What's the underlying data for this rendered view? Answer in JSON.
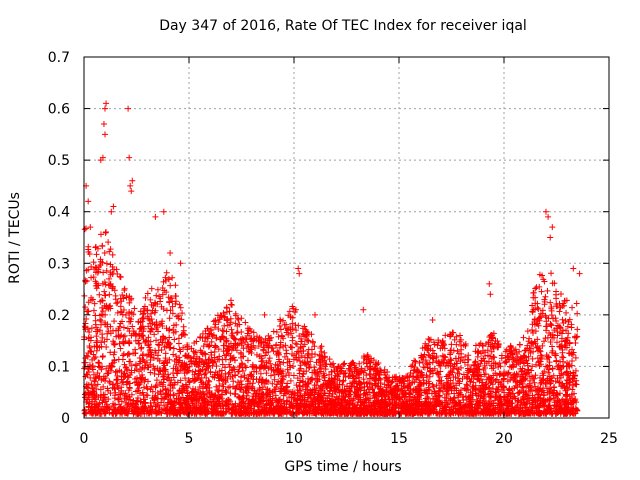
{
  "chart_data": {
    "type": "scatter",
    "title": "Day 347 of 2016, Rate Of TEC Index for receiver iqal",
    "xlabel": "GPS time / hours",
    "ylabel": "ROTI / TECUs",
    "xlim": [
      0,
      25
    ],
    "ylim": [
      0,
      0.7
    ],
    "x_ticks": [
      0,
      5,
      10,
      15,
      20,
      25
    ],
    "x_tick_labels": [
      "0",
      "5",
      "10",
      "15",
      "20",
      "25"
    ],
    "y_ticks": [
      0,
      0.1,
      0.2,
      0.3,
      0.4,
      0.5,
      0.6,
      0.7
    ],
    "y_tick_labels": [
      "0",
      "0.1",
      "0.2",
      "0.3",
      "0.4",
      "0.5",
      "0.6",
      "0.7"
    ],
    "grid": true,
    "marker": "+",
    "color": "#ff0000",
    "envelope": {
      "x": [
        0.0,
        0.5,
        1.0,
        1.5,
        2.0,
        2.5,
        3.0,
        3.5,
        4.0,
        4.5,
        5.0,
        5.5,
        6.0,
        6.5,
        7.0,
        7.5,
        8.0,
        8.5,
        9.0,
        9.5,
        10.0,
        10.5,
        11.0,
        11.5,
        12.0,
        12.5,
        13.0,
        13.5,
        14.0,
        14.5,
        15.0,
        15.5,
        16.0,
        16.5,
        17.0,
        17.5,
        18.0,
        18.5,
        19.0,
        19.5,
        20.0,
        20.5,
        21.0,
        21.5,
        22.0,
        22.5,
        23.0,
        23.5
      ],
      "y_upper": [
        0.38,
        0.33,
        0.36,
        0.3,
        0.26,
        0.2,
        0.24,
        0.25,
        0.28,
        0.24,
        0.12,
        0.16,
        0.17,
        0.2,
        0.22,
        0.2,
        0.16,
        0.15,
        0.17,
        0.19,
        0.22,
        0.17,
        0.15,
        0.12,
        0.09,
        0.1,
        0.1,
        0.12,
        0.1,
        0.08,
        0.07,
        0.09,
        0.12,
        0.16,
        0.14,
        0.17,
        0.15,
        0.13,
        0.14,
        0.16,
        0.12,
        0.14,
        0.15,
        0.26,
        0.3,
        0.25,
        0.22,
        0.22
      ]
    },
    "highlight_points": [
      {
        "x": 0.1,
        "y": 0.45
      },
      {
        "x": 0.2,
        "y": 0.42
      },
      {
        "x": 0.3,
        "y": 0.37
      },
      {
        "x": 0.8,
        "y": 0.5
      },
      {
        "x": 0.9,
        "y": 0.505
      },
      {
        "x": 1.0,
        "y": 0.6
      },
      {
        "x": 1.05,
        "y": 0.61
      },
      {
        "x": 0.95,
        "y": 0.57
      },
      {
        "x": 1.0,
        "y": 0.55
      },
      {
        "x": 1.4,
        "y": 0.41
      },
      {
        "x": 1.3,
        "y": 0.4
      },
      {
        "x": 2.1,
        "y": 0.6
      },
      {
        "x": 2.15,
        "y": 0.505
      },
      {
        "x": 2.3,
        "y": 0.46
      },
      {
        "x": 2.2,
        "y": 0.45
      },
      {
        "x": 2.25,
        "y": 0.44
      },
      {
        "x": 3.4,
        "y": 0.39
      },
      {
        "x": 3.8,
        "y": 0.4
      },
      {
        "x": 4.1,
        "y": 0.32
      },
      {
        "x": 4.6,
        "y": 0.3
      },
      {
        "x": 10.2,
        "y": 0.29
      },
      {
        "x": 10.25,
        "y": 0.28
      },
      {
        "x": 13.3,
        "y": 0.21
      },
      {
        "x": 16.6,
        "y": 0.19
      },
      {
        "x": 19.3,
        "y": 0.26
      },
      {
        "x": 19.35,
        "y": 0.24
      },
      {
        "x": 22.0,
        "y": 0.4
      },
      {
        "x": 22.1,
        "y": 0.39
      },
      {
        "x": 22.3,
        "y": 0.37
      },
      {
        "x": 22.2,
        "y": 0.35
      },
      {
        "x": 23.3,
        "y": 0.29
      },
      {
        "x": 23.6,
        "y": 0.28
      },
      {
        "x": 8.6,
        "y": 0.2
      },
      {
        "x": 11.0,
        "y": 0.2
      },
      {
        "x": 7.0,
        "y": 0.22
      }
    ]
  }
}
